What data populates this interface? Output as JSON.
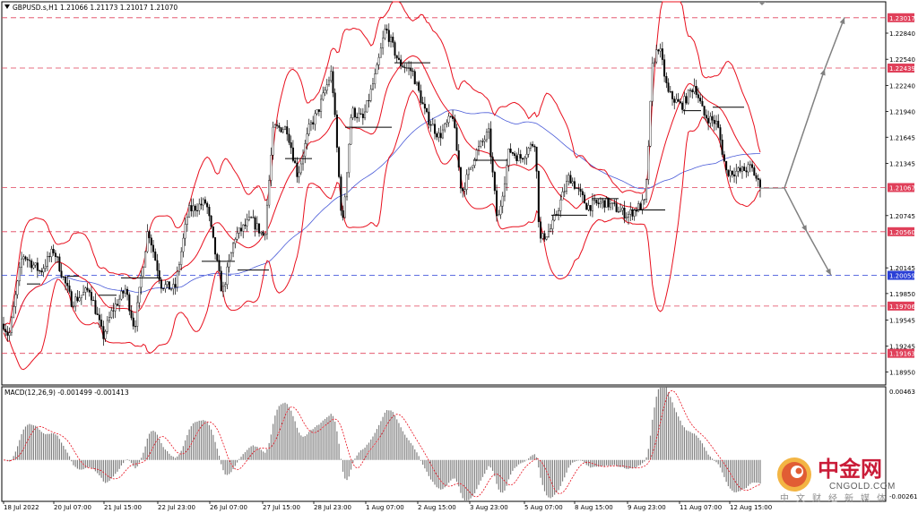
{
  "chart_data": [
    {
      "type": "candlestick",
      "symbol_header": "GBPUSD.s,H1  1.21066 1.21173 1.21017 1.21070",
      "ohlc": {
        "open": 1.21066,
        "high": 1.21173,
        "low": 1.21017,
        "close": 1.2107
      },
      "ylim": [
        1.188,
        1.232
      ],
      "y_ticks": [
        1.2284,
        1.2254,
        1.2224,
        1.2194,
        1.21645,
        1.21345,
        1.20745,
        1.20145,
        1.1985,
        1.19545,
        1.19245,
        1.1895
      ],
      "x_ticks": [
        "18 Jul 2022",
        "20 Jul 07:00",
        "21 Jul 15:00",
        "22 Jul 23:00",
        "26 Jul 07:00",
        "27 Jul 15:00",
        "28 Jul 23:00",
        "1 Aug 07:00",
        "2 Aug 15:00",
        "3 Aug 23:00",
        "5 Aug 07:00",
        "8 Aug 15:00",
        "9 Aug 23:00",
        "11 Aug 07:00",
        "12 Aug 15:00"
      ],
      "levels": [
        {
          "value": 1.23017,
          "label": "1.23017",
          "color": "#e0405a"
        },
        {
          "value": 1.22439,
          "label": "1.22439",
          "color": "#e0405a"
        },
        {
          "value": 1.21067,
          "label": "1.21067",
          "color": "#e0405a"
        },
        {
          "value": 1.2056,
          "label": "1.20560",
          "color": "#e0405a"
        },
        {
          "value": 1.20059,
          "label": "1.20059",
          "color": "#2a3fd6"
        },
        {
          "value": 1.19706,
          "label": "1.19706",
          "color": "#e0405a"
        },
        {
          "value": 1.19163,
          "label": "1.19163",
          "color": "#e0405a"
        }
      ],
      "indicators": [
        "Bollinger Bands (red)",
        "Moving Average (blue)"
      ],
      "colors": {
        "candle": "#000000",
        "bands": "#e8101e",
        "ma": "#4a5bd8",
        "arrow": "#808080"
      }
    },
    {
      "type": "macd",
      "label": "MACD(12,26,9) -0.001499 -0.001413",
      "ylim": [
        -0.002619,
        0.00463
      ],
      "y_ticks_labels": [
        "0.00463",
        "-0.002619"
      ],
      "colors": {
        "histogram": "#808080",
        "signal": "#e8101e"
      }
    }
  ],
  "watermark": {
    "cn": "中金网",
    "en": "CNGOLD.COM",
    "sub": "中文财经新媒体"
  }
}
